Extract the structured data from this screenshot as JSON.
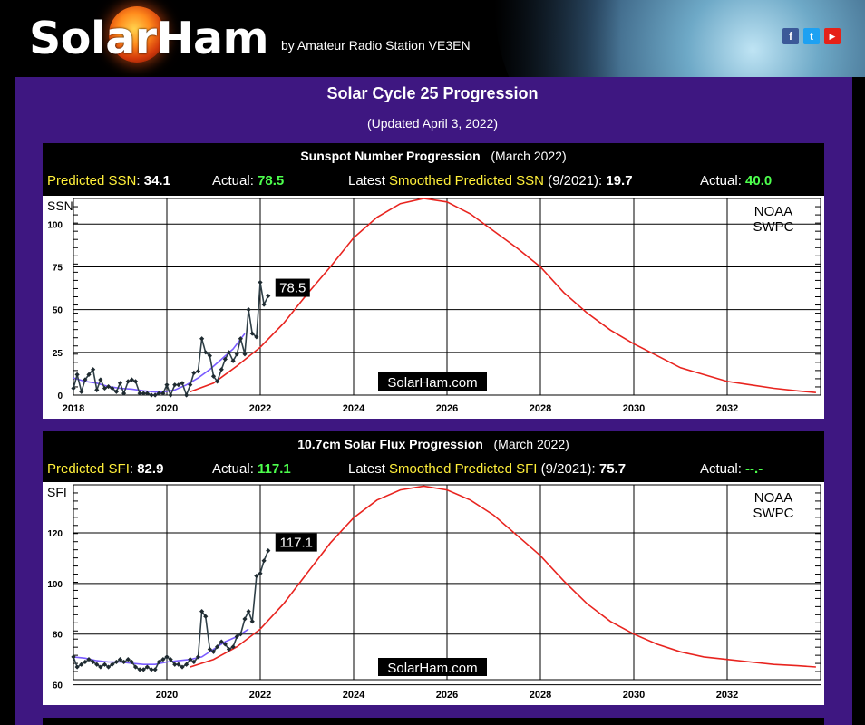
{
  "header": {
    "logo_text": "SolarHam",
    "byline": "by Amateur Radio Station VE3EN",
    "social": [
      {
        "icon": "facebook-icon",
        "glyph": "f",
        "color": "#3b5998"
      },
      {
        "icon": "twitter-icon",
        "glyph": "t",
        "color": "#1da1f2"
      },
      {
        "icon": "youtube-icon",
        "glyph": "▶",
        "color": "#e62117"
      }
    ]
  },
  "page": {
    "title": "Solar Cycle 25 Progression",
    "updated": "(Updated April 3, 2022)"
  },
  "ssn_panel": {
    "title": "Sunspot Number Progression",
    "period": "(March 2022)",
    "predicted_label": "Predicted SSN",
    "predicted_value": "34.1",
    "actual_label": "Actual:",
    "actual_value": "78.5",
    "smoothed_prefix": "Latest",
    "smoothed_label": "Smoothed Predicted SSN",
    "smoothed_date": "(9/2021):",
    "smoothed_value": "19.7",
    "smoothed_actual_label": "Actual:",
    "smoothed_actual_value": "40.0"
  },
  "sfi_panel": {
    "title": "10.7cm Solar Flux Progression",
    "period": "(March 2022)",
    "predicted_label": "Predicted SFI",
    "predicted_value": "82.9",
    "actual_label": "Actual:",
    "actual_value": "117.1",
    "smoothed_prefix": "Latest",
    "smoothed_label": "Smoothed Predicted SFI",
    "smoothed_date": "(9/2021):",
    "smoothed_value": "75.7",
    "smoothed_actual_label": "Actual:",
    "smoothed_actual_value": "--.-"
  },
  "colors": {
    "background": "#3e1781",
    "highlight_yellow": "#ffef3a",
    "highlight_green": "#4dff4d",
    "predicted_curve": "#e8241f",
    "smoothed_line": "#7a5cff",
    "observed_line": "#2f3f47"
  },
  "chart_data": [
    {
      "type": "line",
      "ylabel": "SSN",
      "xlim": [
        2018,
        2034
      ],
      "ylim": [
        0,
        115
      ],
      "x_ticks": [
        2018,
        2020,
        2022,
        2024,
        2026,
        2028,
        2030,
        2032
      ],
      "x_tick_labels": [
        "2018",
        "2020",
        "2022",
        "2024",
        "2026",
        "2028",
        "2030",
        "2032"
      ],
      "y_ticks": [
        0,
        25,
        50,
        75,
        100
      ],
      "y_tick_labels": [
        "0",
        "25",
        "50",
        "75",
        "100"
      ],
      "annotations": {
        "latest_label": "78.5",
        "agency": [
          "NOAA",
          "SWPC"
        ],
        "watermark": "SolarHam.com"
      },
      "series": [
        {
          "name": "observed",
          "x": [
            2018.0,
            2018.08,
            2018.17,
            2018.25,
            2018.33,
            2018.42,
            2018.5,
            2018.58,
            2018.67,
            2018.75,
            2018.83,
            2018.92,
            2019.0,
            2019.08,
            2019.17,
            2019.25,
            2019.33,
            2019.42,
            2019.5,
            2019.58,
            2019.67,
            2019.75,
            2019.83,
            2019.92,
            2020.0,
            2020.08,
            2020.17,
            2020.25,
            2020.33,
            2020.42,
            2020.5,
            2020.58,
            2020.67,
            2020.75,
            2020.83,
            2020.92,
            2021.0,
            2021.08,
            2021.17,
            2021.25,
            2021.33,
            2021.42,
            2021.5,
            2021.58,
            2021.67,
            2021.75,
            2021.83,
            2021.92,
            2022.0,
            2022.08,
            2022.17
          ],
          "y": [
            4,
            12,
            2,
            9,
            12,
            15,
            3,
            9,
            4,
            5,
            4,
            2,
            7,
            1,
            8,
            9,
            8,
            1,
            1,
            1,
            0,
            0,
            1,
            1,
            6,
            0,
            6,
            6,
            7,
            0,
            6,
            13,
            14,
            33,
            25,
            23,
            11,
            8,
            15,
            21,
            25,
            20,
            24,
            33,
            24,
            50,
            36,
            34,
            66,
            53,
            58
          ]
        },
        {
          "name": "smoothed",
          "x": [
            2018.0,
            2018.25,
            2018.5,
            2018.75,
            2019.0,
            2019.25,
            2019.5,
            2019.75,
            2019.92,
            2020.17,
            2020.42,
            2020.67,
            2020.92,
            2021.17,
            2021.42,
            2021.67
          ],
          "y": [
            10,
            8,
            7,
            5,
            4,
            3.5,
            2.5,
            1.8,
            1.8,
            3,
            6,
            10,
            15,
            21,
            27,
            36
          ]
        },
        {
          "name": "predicted",
          "x": [
            2020.5,
            2021.0,
            2021.5,
            2022.0,
            2022.5,
            2023.0,
            2023.5,
            2024.0,
            2024.5,
            2025.0,
            2025.5,
            2026.0,
            2026.5,
            2027.0,
            2027.5,
            2028.0,
            2028.5,
            2029.0,
            2029.5,
            2030.0,
            2030.5,
            2031.0,
            2031.5,
            2032.0,
            2032.5,
            2033.0,
            2033.5,
            2033.9
          ],
          "y": [
            2,
            7,
            17,
            28,
            42,
            59,
            75,
            92,
            104,
            112,
            115,
            113,
            106,
            96,
            86,
            75,
            60,
            48,
            38,
            30,
            23,
            16,
            12,
            8,
            6,
            4,
            2.5,
            1.5
          ]
        }
      ]
    },
    {
      "type": "line",
      "ylabel": "SFI",
      "xlim": [
        2018,
        2034
      ],
      "ylim": [
        62,
        139
      ],
      "x_ticks": [
        2020,
        2022,
        2024,
        2026,
        2028,
        2030,
        2032
      ],
      "x_tick_labels": [
        "2020",
        "2022",
        "2024",
        "2026",
        "2028",
        "2030",
        "2032"
      ],
      "y_ticks": [
        60,
        80,
        100,
        120
      ],
      "y_tick_labels": [
        "60",
        "80",
        "100",
        "120"
      ],
      "annotations": {
        "latest_label": "117.1",
        "agency": [
          "NOAA",
          "SWPC"
        ],
        "watermark": "SolarHam.com"
      },
      "series": [
        {
          "name": "observed",
          "x": [
            2018.0,
            2018.08,
            2018.17,
            2018.25,
            2018.33,
            2018.42,
            2018.5,
            2018.58,
            2018.67,
            2018.75,
            2018.83,
            2018.92,
            2019.0,
            2019.08,
            2019.17,
            2019.25,
            2019.33,
            2019.42,
            2019.5,
            2019.58,
            2019.67,
            2019.75,
            2019.83,
            2019.92,
            2020.0,
            2020.08,
            2020.17,
            2020.25,
            2020.33,
            2020.42,
            2020.5,
            2020.58,
            2020.67,
            2020.75,
            2020.83,
            2020.92,
            2021.0,
            2021.08,
            2021.17,
            2021.25,
            2021.33,
            2021.42,
            2021.5,
            2021.58,
            2021.67,
            2021.75,
            2021.83,
            2021.92,
            2022.0,
            2022.08,
            2022.17
          ],
          "y": [
            71,
            67,
            68,
            69,
            70,
            69,
            68,
            67,
            68,
            67,
            68,
            69,
            70,
            69,
            70,
            69,
            67,
            66,
            66,
            67,
            66,
            66,
            69,
            70,
            71,
            70,
            68,
            68,
            67,
            68,
            70,
            69,
            71,
            89,
            87,
            74,
            73,
            75,
            77,
            76,
            74,
            75,
            79,
            80,
            86,
            89,
            85,
            103,
            104,
            109,
            113
          ]
        },
        {
          "name": "smoothed",
          "x": [
            2018.0,
            2018.25,
            2018.5,
            2018.75,
            2019.0,
            2019.25,
            2019.5,
            2019.75,
            2020.0,
            2020.25,
            2020.5,
            2020.75,
            2021.0,
            2021.25,
            2021.5,
            2021.75
          ],
          "y": [
            71,
            70.5,
            69.5,
            69,
            69,
            68.5,
            68,
            68,
            69,
            69.5,
            70,
            71,
            74,
            77,
            79,
            82
          ]
        },
        {
          "name": "predicted",
          "x": [
            2020.5,
            2021.0,
            2021.5,
            2022.0,
            2022.5,
            2023.0,
            2023.5,
            2024.0,
            2024.5,
            2025.0,
            2025.5,
            2026.0,
            2026.5,
            2027.0,
            2027.5,
            2028.0,
            2028.5,
            2029.0,
            2029.5,
            2030.0,
            2030.5,
            2031.0,
            2031.5,
            2032.0,
            2032.5,
            2033.0,
            2033.5,
            2033.9
          ],
          "y": [
            67,
            70,
            75,
            82,
            92,
            104,
            116,
            126,
            133,
            137,
            138.5,
            137,
            133,
            127,
            119,
            111,
            101,
            92,
            85,
            80,
            76,
            73,
            71,
            70,
            69,
            68,
            67.5,
            67
          ]
        }
      ]
    }
  ]
}
